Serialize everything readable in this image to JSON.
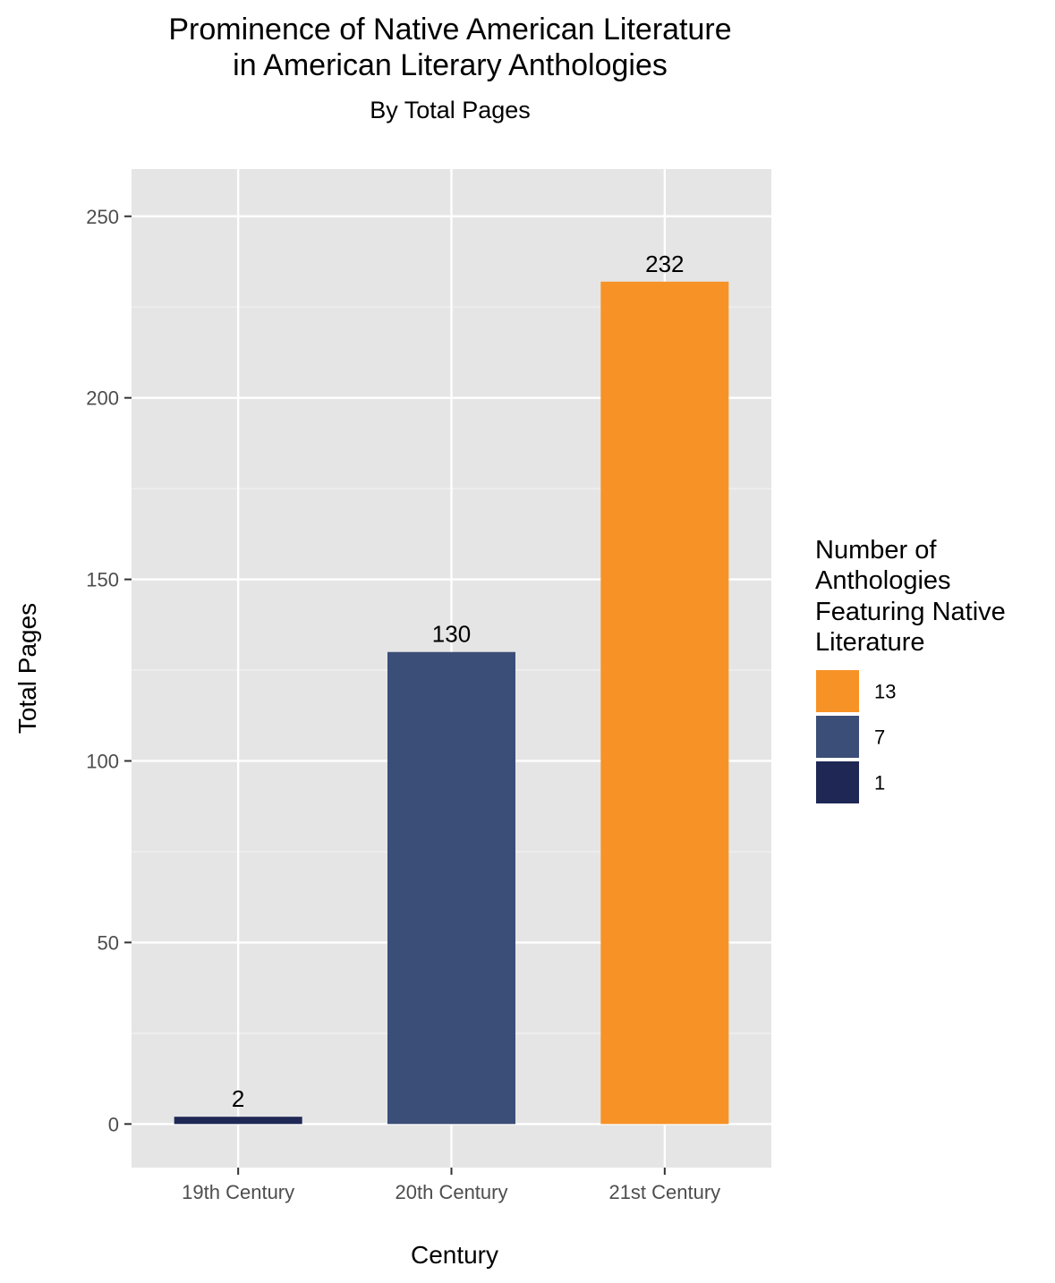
{
  "chart_data": {
    "type": "bar",
    "title_lines": [
      "Prominence of Native American Literature",
      "in American Literary Anthologies"
    ],
    "subtitle": "By Total Pages",
    "xlabel": "Century",
    "ylabel": "Total Pages",
    "categories": [
      "19th Century",
      "20th Century",
      "21st Century"
    ],
    "values": [
      2,
      130,
      232
    ],
    "data_labels": [
      "2",
      "130",
      "232"
    ],
    "bar_fill_group": [
      "1",
      "7",
      "13"
    ],
    "ylim": [
      -12,
      263
    ],
    "y_ticks": [
      0,
      50,
      100,
      150,
      200,
      250
    ],
    "y_tick_labels": [
      "0",
      "50",
      "100",
      "150",
      "200",
      "250"
    ],
    "grid": true,
    "panel_background": "#e5e5e5",
    "legend": {
      "placement": "right",
      "title_lines": [
        "Number of",
        "Anthologies",
        "Featuring Native",
        "Literature"
      ],
      "entries": [
        {
          "label": "13",
          "color": "#f79226"
        },
        {
          "label": "7",
          "color": "#3b4e78"
        },
        {
          "label": "1",
          "color": "#1f2855"
        }
      ]
    }
  }
}
